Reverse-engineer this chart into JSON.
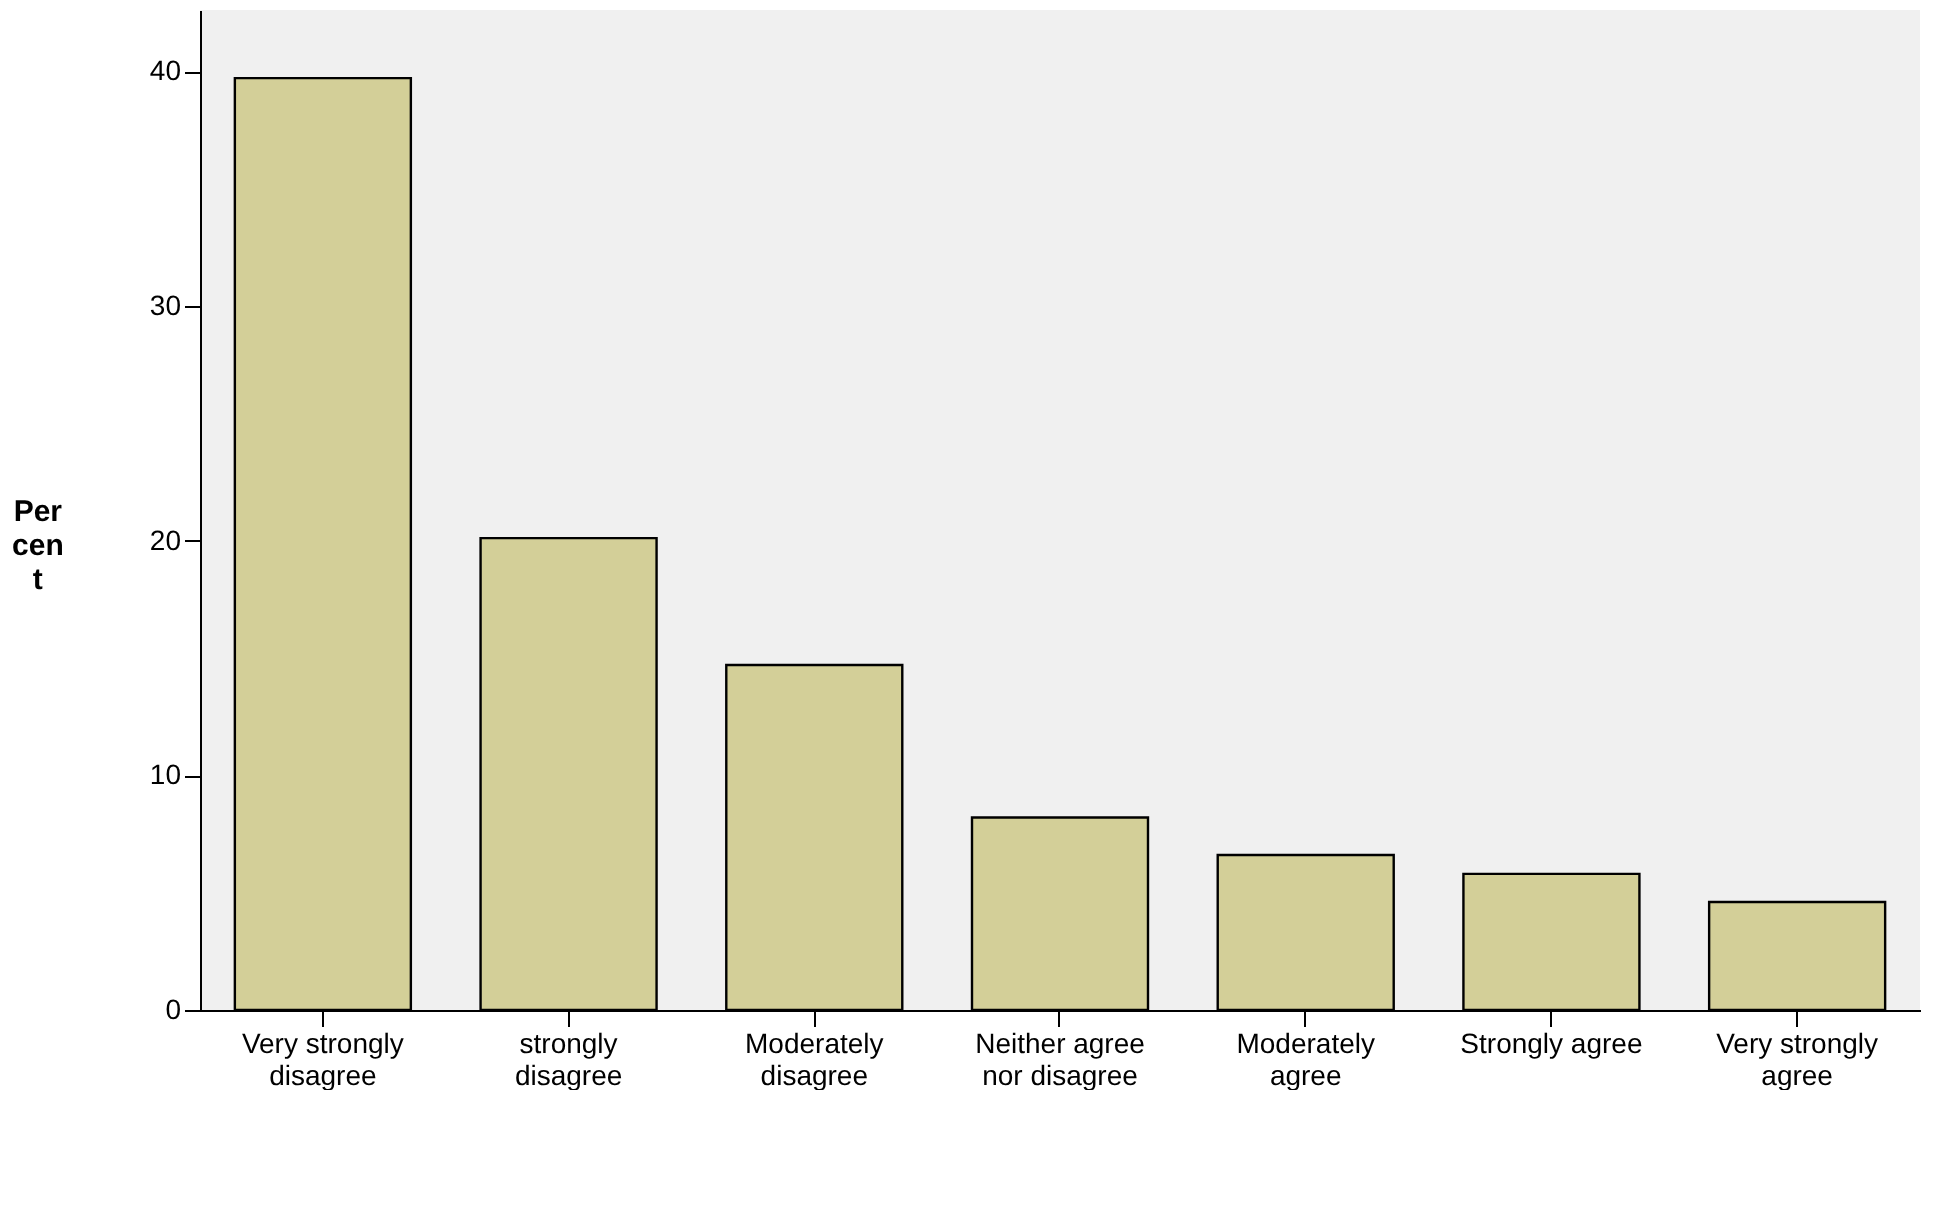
{
  "chart_data": {
    "type": "bar",
    "ylabel": "Percent",
    "categories": [
      "Very strongly disagree",
      "strongly disagree",
      "Moderately disagree",
      "Neither  agree nor disagree",
      "Moderately agree",
      "Strongly agree",
      "Very strongly agree"
    ],
    "values": [
      39.7,
      20.1,
      14.7,
      8.2,
      6.6,
      5.8,
      4.6
    ],
    "color": "#d3cf98",
    "ylim": [
      0,
      42.6
    ],
    "yticks": [
      0,
      10,
      20,
      30,
      40
    ],
    "grid": false
  }
}
